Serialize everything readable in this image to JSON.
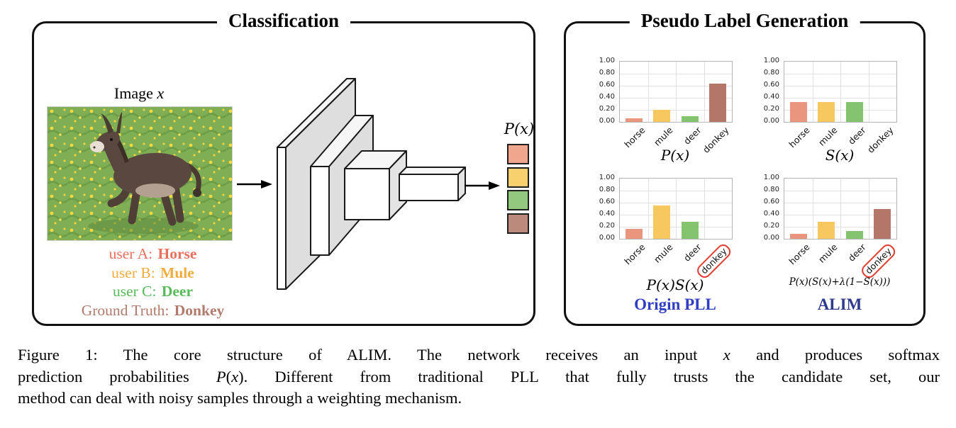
{
  "classification": {
    "title": "Classification",
    "image_label": {
      "segments": [
        {
          "t": "Image "
        },
        {
          "t": "x",
          "i": true
        }
      ]
    },
    "image_alt": "baby donkey running in a green meadow with yellow flowers",
    "annotations": [
      {
        "prefix": "user A: ",
        "label": "Horse",
        "color": "#e8705c"
      },
      {
        "prefix": "user B: ",
        "label": "Mule",
        "color": "#f0ac3c"
      },
      {
        "prefix": "user C: ",
        "label": "Deer",
        "color": "#57bb59"
      },
      {
        "prefix": "Ground Truth: ",
        "label": "Donkey",
        "color": "#b17a6d"
      }
    ],
    "output_label": {
      "segments": [
        {
          "t": "P",
          "i": true
        },
        {
          "t": "("
        },
        {
          "t": "x",
          "i": true
        },
        {
          "t": ")"
        }
      ]
    },
    "output_squares": [
      {
        "name": "horse probability",
        "color": "#f0a68c"
      },
      {
        "name": "mule probability",
        "color": "#f8d06e"
      },
      {
        "name": "deer probability",
        "color": "#93c97f"
      },
      {
        "name": "donkey probability",
        "color": "#bb8a7c"
      }
    ]
  },
  "pseudo": {
    "title": "Pseudo Label Generation"
  },
  "chart_style": {
    "bar_colors": [
      "#ea967f",
      "#f8c860",
      "#85c46f",
      "#b27769"
    ],
    "grid_color": "#e2e2e2",
    "border_color": "#b5b5b5",
    "circle_color": "#e23b30"
  },
  "chart_data": [
    {
      "type": "bar",
      "categories": [
        "horse",
        "mule",
        "deer",
        "donkey"
      ],
      "values": [
        0.06,
        0.2,
        0.1,
        0.63
      ],
      "title": "P(x)",
      "ylim": [
        0,
        1
      ],
      "yticks": [
        "1.00",
        "0.80",
        "0.60",
        "0.40",
        "0.20",
        "0.00"
      ],
      "grid": true,
      "circled": []
    },
    {
      "type": "bar",
      "categories": [
        "horse",
        "mule",
        "deer",
        "donkey"
      ],
      "values": [
        0.33,
        0.33,
        0.33,
        0.0
      ],
      "title": "S(x)",
      "ylim": [
        0,
        1
      ],
      "yticks": [
        "1.00",
        "0.80",
        "0.60",
        "0.40",
        "0.20",
        "0.00"
      ],
      "grid": true,
      "circled": []
    },
    {
      "type": "bar",
      "categories": [
        "horse",
        "mule",
        "deer",
        "donkey"
      ],
      "values": [
        0.17,
        0.55,
        0.28,
        0.0
      ],
      "title": "P(x)S(x)",
      "ylim": [
        0,
        1
      ],
      "yticks": [
        "1.00",
        "0.80",
        "0.60",
        "0.40",
        "0.20",
        "0.00"
      ],
      "grid": true,
      "circled": [
        "donkey"
      ],
      "method": {
        "name": "Origin PLL",
        "color": "#2f3ec4"
      }
    },
    {
      "type": "bar",
      "categories": [
        "horse",
        "mule",
        "deer",
        "donkey"
      ],
      "values": [
        0.08,
        0.28,
        0.13,
        0.5
      ],
      "title": "P(x)(S(x)+λ(1−S(x)))",
      "ylim": [
        0,
        1
      ],
      "yticks": [
        "1.00",
        "0.80",
        "0.60",
        "0.40",
        "0.20",
        "0.00"
      ],
      "grid": true,
      "circled": [
        "donkey"
      ],
      "method": {
        "name": "ALIM",
        "color": "#2e3a8c"
      }
    }
  ],
  "figure": {
    "caption_lines": [
      {
        "segments": [
          {
            "t": "Figure 1:  The core structure of ALIM. The network receives an input "
          },
          {
            "t": "x",
            "i": true
          },
          {
            "t": " and produces softmax"
          }
        ]
      },
      {
        "segments": [
          {
            "t": "prediction probabilities "
          },
          {
            "t": "P",
            "i": true
          },
          {
            "t": "("
          },
          {
            "t": "x",
            "i": true
          },
          {
            "t": ")"
          },
          {
            "t": ". Different from traditional PLL that fully trusts the candidate set, our"
          }
        ]
      },
      {
        "segments": [
          {
            "t": "method can deal with noisy samples through a weighting mechanism."
          }
        ]
      }
    ]
  }
}
